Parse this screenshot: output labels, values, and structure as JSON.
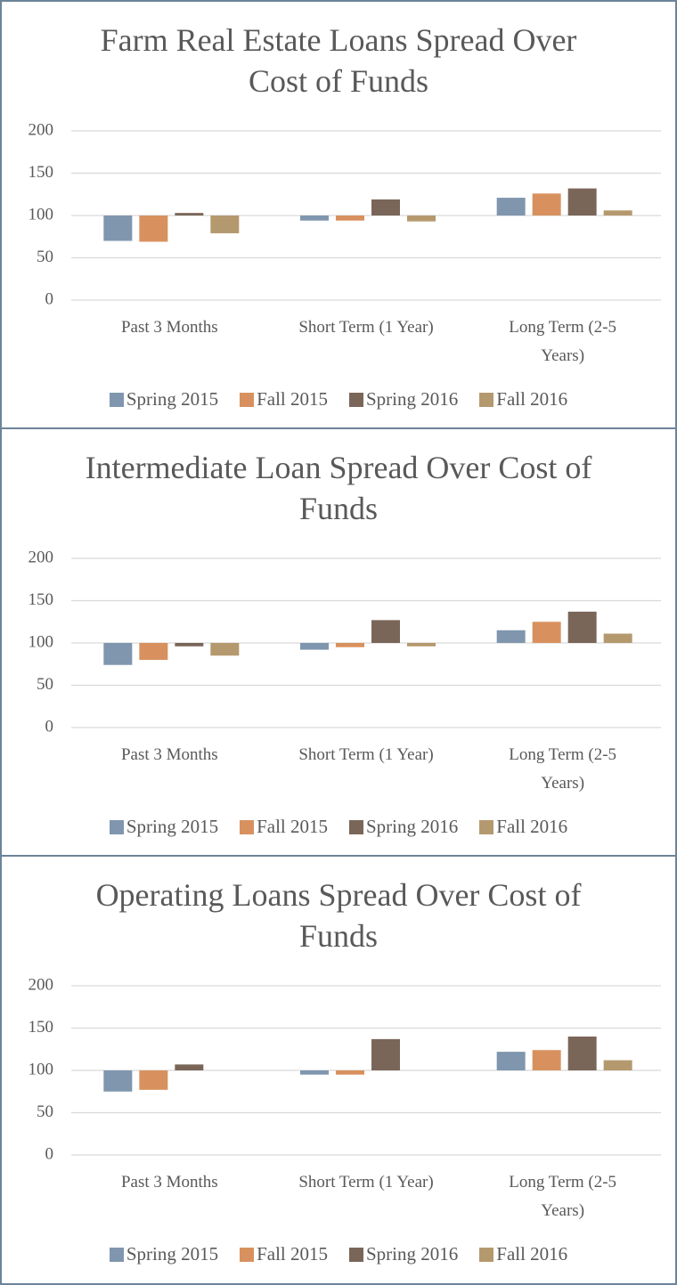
{
  "chart_data": [
    {
      "type": "bar",
      "title": "Farm Real Estate Loans Spread Over Cost of Funds",
      "categories": [
        "Past 3 Months",
        "Short Term (1 Year)",
        "Long Term (2-5 Years)"
      ],
      "baseline": 100,
      "ylim": [
        0,
        200
      ],
      "yticks": [
        0,
        50,
        100,
        150,
        200
      ],
      "grid": true,
      "series": [
        {
          "name": "Spring 2015",
          "color": "#7f96ae",
          "values": [
            70,
            94,
            121
          ]
        },
        {
          "name": "Fall 2015",
          "color": "#d8915e",
          "values": [
            69,
            94,
            126
          ]
        },
        {
          "name": "Spring 2016",
          "color": "#7a6659",
          "values": [
            103,
            119,
            132
          ]
        },
        {
          "name": "Fall 2016",
          "color": "#b5996e",
          "values": [
            79,
            93,
            106
          ]
        }
      ]
    },
    {
      "type": "bar",
      "title": "Intermediate Loan Spread Over Cost of Funds",
      "categories": [
        "Past 3 Months",
        "Short Term (1 Year)",
        "Long Term (2-5 Years)"
      ],
      "baseline": 100,
      "ylim": [
        0,
        200
      ],
      "yticks": [
        0,
        50,
        100,
        150,
        200
      ],
      "grid": true,
      "series": [
        {
          "name": "Spring 2015",
          "color": "#7f96ae",
          "values": [
            74,
            92,
            115
          ]
        },
        {
          "name": "Fall 2015",
          "color": "#d8915e",
          "values": [
            80,
            95,
            125
          ]
        },
        {
          "name": "Spring 2016",
          "color": "#7a6659",
          "values": [
            96,
            127,
            137
          ]
        },
        {
          "name": "Fall 2016",
          "color": "#b5996e",
          "values": [
            85,
            96,
            111
          ]
        }
      ]
    },
    {
      "type": "bar",
      "title": "Operating Loans Spread Over Cost of Funds",
      "categories": [
        "Past 3 Months",
        "Short Term (1 Year)",
        "Long Term (2-5 Years)"
      ],
      "baseline": 100,
      "ylim": [
        0,
        200
      ],
      "yticks": [
        0,
        50,
        100,
        150,
        200
      ],
      "grid": true,
      "series": [
        {
          "name": "Spring 2015",
          "color": "#7f96ae",
          "values": [
            75,
            95,
            122
          ]
        },
        {
          "name": "Fall 2015",
          "color": "#d8915e",
          "values": [
            77,
            95,
            124
          ]
        },
        {
          "name": "Spring 2016",
          "color": "#7a6659",
          "values": [
            107,
            137,
            140
          ]
        },
        {
          "name": "Fall 2016",
          "color": "#b5996e",
          "values": [
            100,
            100,
            112
          ]
        }
      ]
    }
  ]
}
